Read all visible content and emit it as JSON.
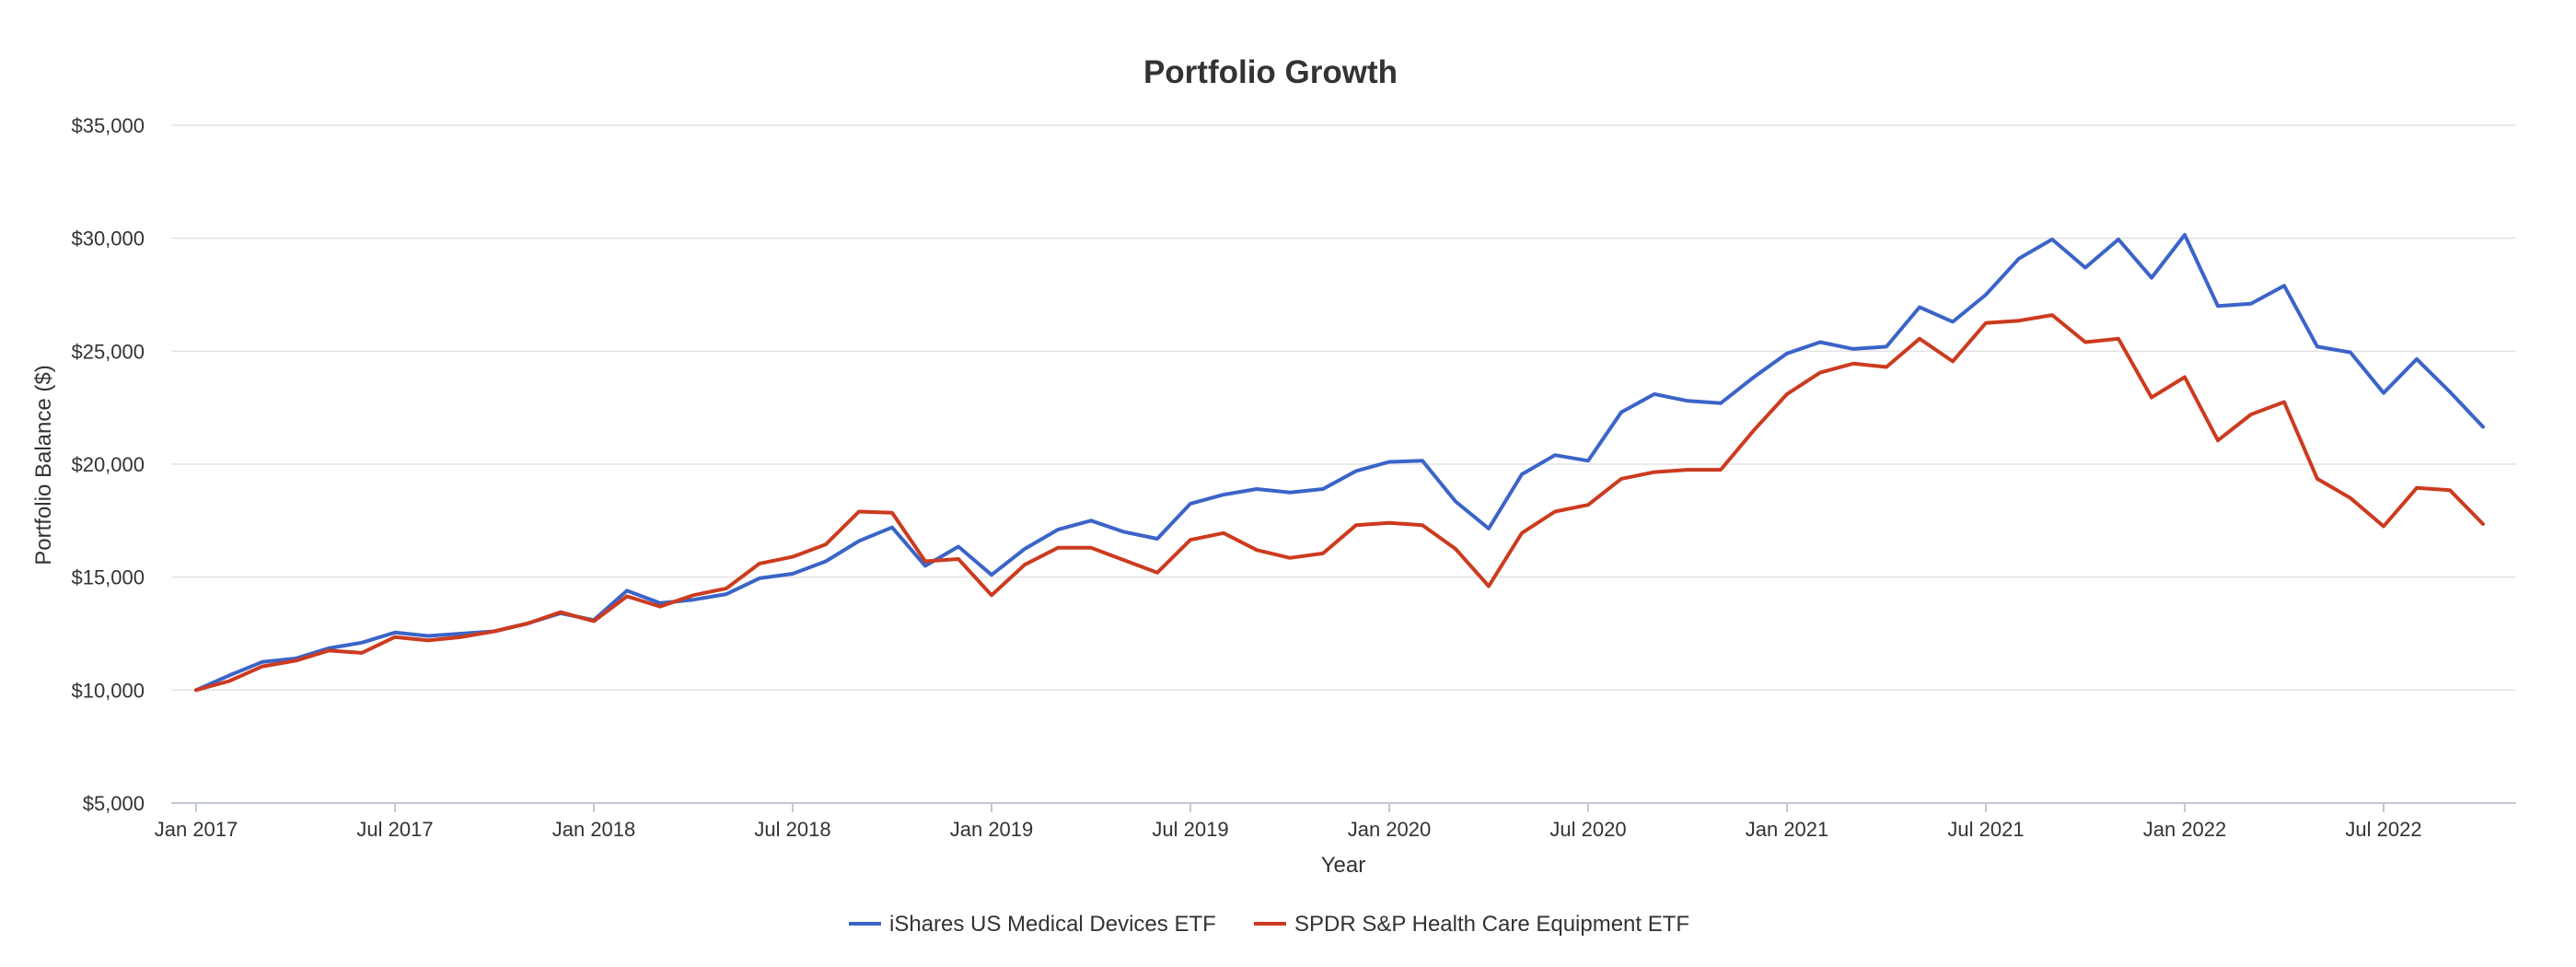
{
  "chart_data": {
    "type": "line",
    "title": "Portfolio Growth",
    "xlabel": "Year",
    "ylabel": "Portfolio Balance ($)",
    "ylim": [
      5000,
      35000
    ],
    "y_ticks": [
      5000,
      10000,
      15000,
      20000,
      25000,
      30000,
      35000
    ],
    "y_tick_labels": [
      "$5,000",
      "$10,000",
      "$15,000",
      "$20,000",
      "$25,000",
      "$30,000",
      "$35,000"
    ],
    "x_tick_labels": [
      "Jan 2017",
      "Jul 2017",
      "Jan 2018",
      "Jul 2018",
      "Jan 2019",
      "Jul 2019",
      "Jan 2020",
      "Jul 2020",
      "Jan 2021",
      "Jul 2021",
      "Jan 2022",
      "Jul 2022"
    ],
    "x_tick_month_index": [
      0,
      6,
      12,
      18,
      24,
      30,
      36,
      42,
      48,
      54,
      60,
      66
    ],
    "start_month": "Jan 2017",
    "grid": true,
    "legend_position": "bottom",
    "series": [
      {
        "name": "iShares US Medical Devices ETF",
        "color": "#3b64c8",
        "values": [
          10000,
          10650,
          11250,
          11400,
          11850,
          12100,
          12550,
          12400,
          12500,
          12600,
          12950,
          13400,
          13100,
          14400,
          13850,
          14000,
          14250,
          14950,
          15150,
          15700,
          16600,
          17200,
          15500,
          16350,
          15100,
          16250,
          17100,
          17500,
          17000,
          16700,
          18250,
          18650,
          18900,
          18750,
          18900,
          19700,
          20100,
          20150,
          18350,
          17150,
          19550,
          20400,
          20150,
          22300,
          23100,
          22800,
          22700,
          23850,
          24900,
          25400,
          25100,
          25200,
          26950,
          26300,
          27500,
          29100,
          29950,
          28700,
          29950,
          28250,
          30150,
          27000,
          27100,
          27900,
          25200,
          24950,
          23150,
          24650,
          23200,
          21650
        ]
      },
      {
        "name": "SPDR S&P Health Care Equipment ETF",
        "color": "#cc3b1f",
        "values": [
          10000,
          10400,
          11050,
          11300,
          11750,
          11650,
          12350,
          12200,
          12350,
          12600,
          12950,
          13450,
          13050,
          14150,
          13700,
          14200,
          14500,
          15600,
          15900,
          16450,
          17900,
          17850,
          15700,
          15800,
          14200,
          15550,
          16300,
          16300,
          15750,
          15200,
          16650,
          16950,
          16200,
          15850,
          16050,
          17300,
          17400,
          17300,
          16250,
          14600,
          16950,
          17900,
          18200,
          19350,
          19650,
          19750,
          19750,
          21500,
          23100,
          24050,
          24450,
          24300,
          25550,
          24550,
          26250,
          26350,
          26600,
          25400,
          25550,
          22950,
          23850,
          21050,
          22200,
          22750,
          19350,
          18500,
          17250,
          18950,
          18850,
          17350
        ]
      }
    ]
  }
}
